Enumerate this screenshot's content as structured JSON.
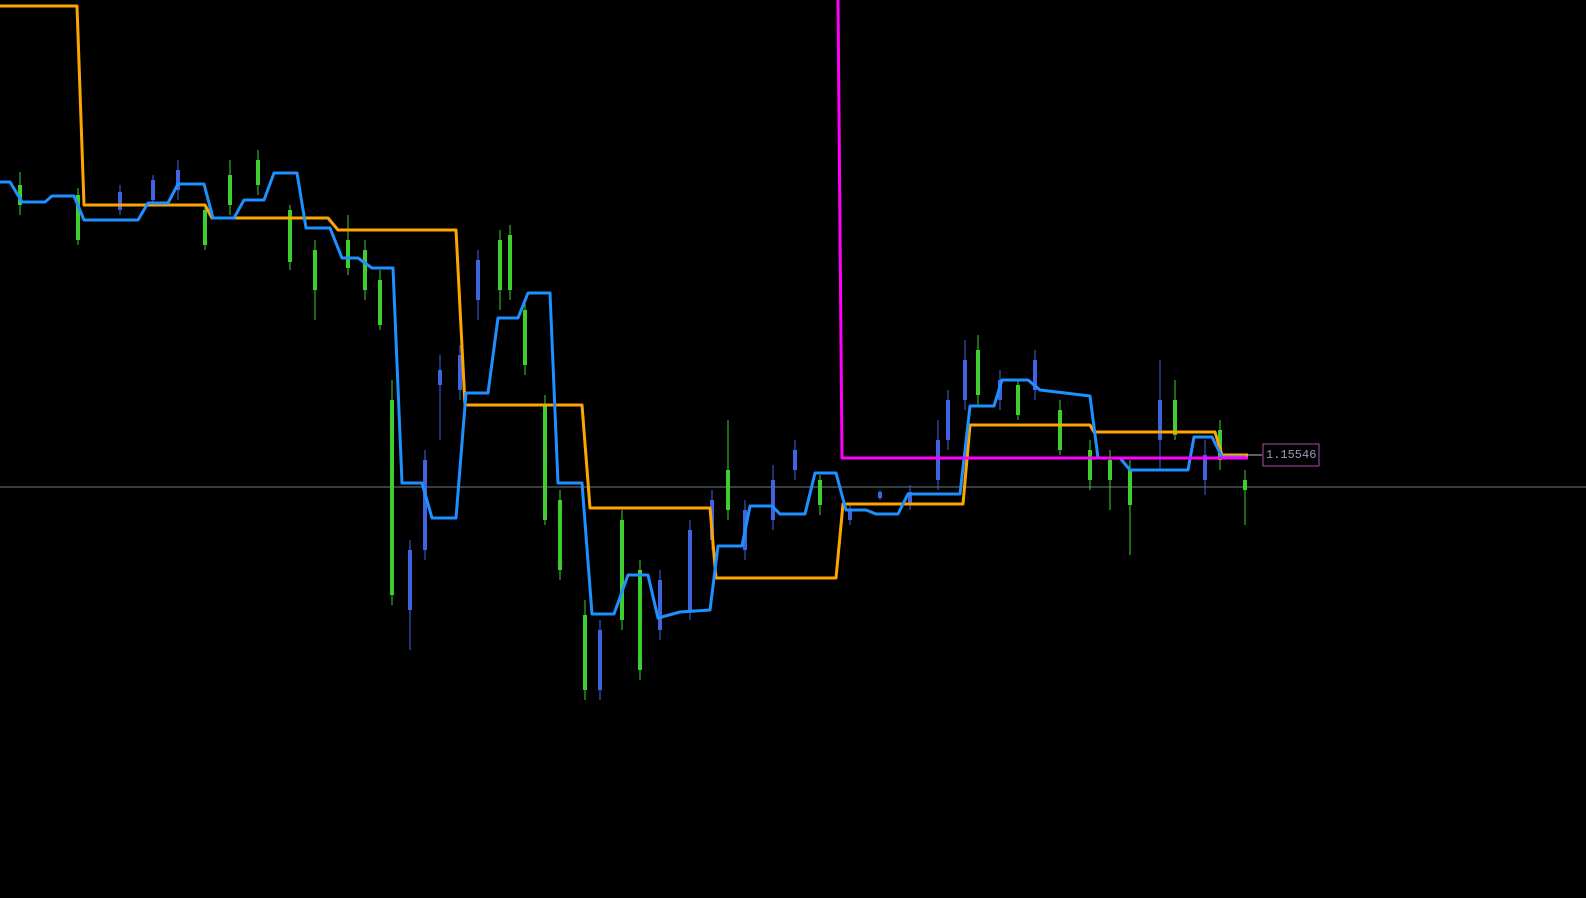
{
  "chart_data": {
    "type": "candlestick",
    "xlim": [
      0,
      317.2
    ],
    "ylim": [
      1.15103,
      1.16001
    ],
    "colors": {
      "up": "#3f64e0",
      "down": "#3ecf2e"
    },
    "candles": {
      "x": [
        4,
        15.6,
        24,
        30.6,
        35.6,
        41,
        46,
        51.6,
        58,
        63,
        69.6,
        73,
        76,
        78.4,
        82,
        85,
        88,
        92,
        95.6,
        100,
        102,
        105,
        109,
        112,
        117,
        120,
        124.4,
        128,
        132,
        138,
        142.4,
        145.6,
        149,
        154.6,
        159,
        164,
        170,
        176,
        182,
        187.6,
        189.6,
        193,
        195.6,
        200,
        203.6,
        207,
        212,
        218,
        222,
        226,
        232,
        235,
        241,
        244,
        249
      ],
      "open": [
        1.15816,
        1.15806,
        1.15791,
        1.15801,
        1.15811,
        1.15791,
        1.15826,
        1.15841,
        1.15791,
        1.15751,
        1.15761,
        1.15751,
        1.15721,
        1.15601,
        1.15391,
        1.15451,
        1.15616,
        1.15611,
        1.15701,
        1.15761,
        1.15766,
        1.15691,
        1.15596,
        1.15501,
        1.15386,
        1.15311,
        1.15481,
        1.15431,
        1.15371,
        1.15391,
        1.15461,
        1.15531,
        1.15451,
        1.15481,
        1.15531,
        1.15521,
        1.15481,
        1.15503,
        1.15496,
        1.15521,
        1.15561,
        1.15601,
        1.15651,
        1.15601,
        1.15616,
        1.15611,
        1.15591,
        1.15551,
        1.15541,
        1.15531,
        1.15561,
        1.15601,
        1.15521,
        1.15571,
        1.15521
      ],
      "high": [
        1.15829,
        1.15813,
        1.15816,
        1.15826,
        1.15841,
        1.15796,
        1.15841,
        1.15851,
        1.15796,
        1.15761,
        1.15786,
        1.15761,
        1.15731,
        1.15621,
        1.15461,
        1.15551,
        1.15646,
        1.15656,
        1.15751,
        1.15771,
        1.15776,
        1.15701,
        1.15606,
        1.15511,
        1.15401,
        1.15381,
        1.15491,
        1.15441,
        1.15431,
        1.15481,
        1.15511,
        1.15581,
        1.15501,
        1.15536,
        1.15561,
        1.15526,
        1.15496,
        1.15511,
        1.15516,
        1.15581,
        1.15611,
        1.15661,
        1.15666,
        1.15631,
        1.15621,
        1.15651,
        1.15601,
        1.15561,
        1.15551,
        1.15541,
        1.15641,
        1.15621,
        1.15561,
        1.15581,
        1.15531
      ],
      "low": [
        1.15786,
        1.15756,
        1.15786,
        1.15796,
        1.15801,
        1.15751,
        1.15786,
        1.15806,
        1.15731,
        1.15681,
        1.15726,
        1.15701,
        1.15671,
        1.15396,
        1.15351,
        1.15441,
        1.15561,
        1.15601,
        1.15681,
        1.15691,
        1.15701,
        1.15626,
        1.15476,
        1.15421,
        1.15301,
        1.15301,
        1.15371,
        1.15321,
        1.15361,
        1.15381,
        1.15451,
        1.15481,
        1.15441,
        1.15471,
        1.15521,
        1.15486,
        1.15476,
        1.15501,
        1.15491,
        1.15511,
        1.15551,
        1.15591,
        1.15596,
        1.15591,
        1.15581,
        1.15601,
        1.15546,
        1.15511,
        1.15491,
        1.15446,
        1.15531,
        1.15561,
        1.15506,
        1.15531,
        1.15476
      ],
      "close": [
        1.15796,
        1.15761,
        1.15809,
        1.15821,
        1.15831,
        1.15756,
        1.15796,
        1.15816,
        1.15739,
        1.15711,
        1.15733,
        1.15711,
        1.15676,
        1.15406,
        1.15451,
        1.15541,
        1.15631,
        1.15646,
        1.15741,
        1.15711,
        1.15711,
        1.15636,
        1.15481,
        1.15431,
        1.15311,
        1.15371,
        1.15381,
        1.15331,
        1.15421,
        1.15471,
        1.15501,
        1.15491,
        1.15491,
        1.15521,
        1.15551,
        1.15496,
        1.15491,
        1.15509,
        1.15509,
        1.15561,
        1.15601,
        1.15641,
        1.15606,
        1.15621,
        1.15586,
        1.15641,
        1.15551,
        1.15521,
        1.15521,
        1.15496,
        1.15601,
        1.15566,
        1.15546,
        1.15541,
        1.15511
      ]
    },
    "lines": [
      {
        "color": "#ffa500",
        "x": [
          0,
          15.4,
          16.8,
          41,
          42.4,
          65.6,
          67.6,
          91.2,
          93,
          116.4,
          118,
          142,
          143.2,
          167.2,
          168.6,
          192.6,
          194,
          218,
          218.8,
          243,
          244.4,
          249.6
        ],
        "values": [
          1.15995,
          1.15995,
          1.15796,
          1.15796,
          1.15783,
          1.15783,
          1.15771,
          1.15771,
          1.15596,
          1.15596,
          1.15493,
          1.15493,
          1.15423,
          1.15423,
          1.15497,
          1.15497,
          1.15576,
          1.15576,
          1.15569,
          1.15569,
          1.15546,
          1.15546
        ]
      },
      {
        "color": "#1e90ff",
        "x": [
          0,
          2,
          4.4,
          9,
          10.4,
          14.8,
          16.8,
          27.6,
          29.6,
          33.6,
          35.6,
          40.8,
          42.6,
          46.8,
          48.8,
          52.8,
          54.8,
          59.4,
          61.2,
          66,
          68.4,
          71.6,
          74.4,
          78.6,
          80.4,
          84.4,
          86.4,
          91.2,
          93.2,
          97.6,
          99.6,
          103.6,
          105.6,
          110,
          111.6,
          116.4,
          118.4,
          122.8,
          125.6,
          129.6,
          131.6,
          136,
          142,
          143.6,
          148.4,
          150,
          154.4,
          156,
          161,
          163,
          167.2,
          169.2,
          173.2,
          175.2,
          179.6,
          181.6,
          192,
          194,
          198.8,
          200.4,
          205.6,
          208,
          218,
          219.6,
          224,
          226,
          237.6,
          238.8,
          242.4,
          244.4,
          249.2
        ],
        "values": [
          1.15819,
          1.15819,
          1.15799,
          1.15799,
          1.15805,
          1.15805,
          1.15781,
          1.15781,
          1.15798,
          1.15798,
          1.15817,
          1.15817,
          1.15783,
          1.15783,
          1.15801,
          1.15801,
          1.15828,
          1.15828,
          1.15773,
          1.15773,
          1.15743,
          1.15743,
          1.15733,
          1.15733,
          1.15518,
          1.15518,
          1.15483,
          1.15483,
          1.15608,
          1.15608,
          1.15683,
          1.15683,
          1.15708,
          1.15708,
          1.15518,
          1.15518,
          1.15387,
          1.15387,
          1.15426,
          1.15426,
          1.15383,
          1.15389,
          1.15391,
          1.15455,
          1.15455,
          1.15495,
          1.15495,
          1.15487,
          1.15487,
          1.15528,
          1.15528,
          1.15491,
          1.15491,
          1.15487,
          1.15487,
          1.15507,
          1.15507,
          1.15595,
          1.15595,
          1.15621,
          1.15621,
          1.15611,
          1.15605,
          1.15543,
          1.15543,
          1.15531,
          1.15531,
          1.15564,
          1.15564,
          1.15544,
          1.15544
        ]
      },
      {
        "color": "#ff00ff",
        "x": [
          167.6,
          168.4,
          249.6
        ],
        "values": [
          1.16001,
          1.15543,
          1.15543
        ]
      }
    ],
    "hline": {
      "value": 1.15514,
      "color": "#6a7f86"
    },
    "last_price": 1.15546
  }
}
